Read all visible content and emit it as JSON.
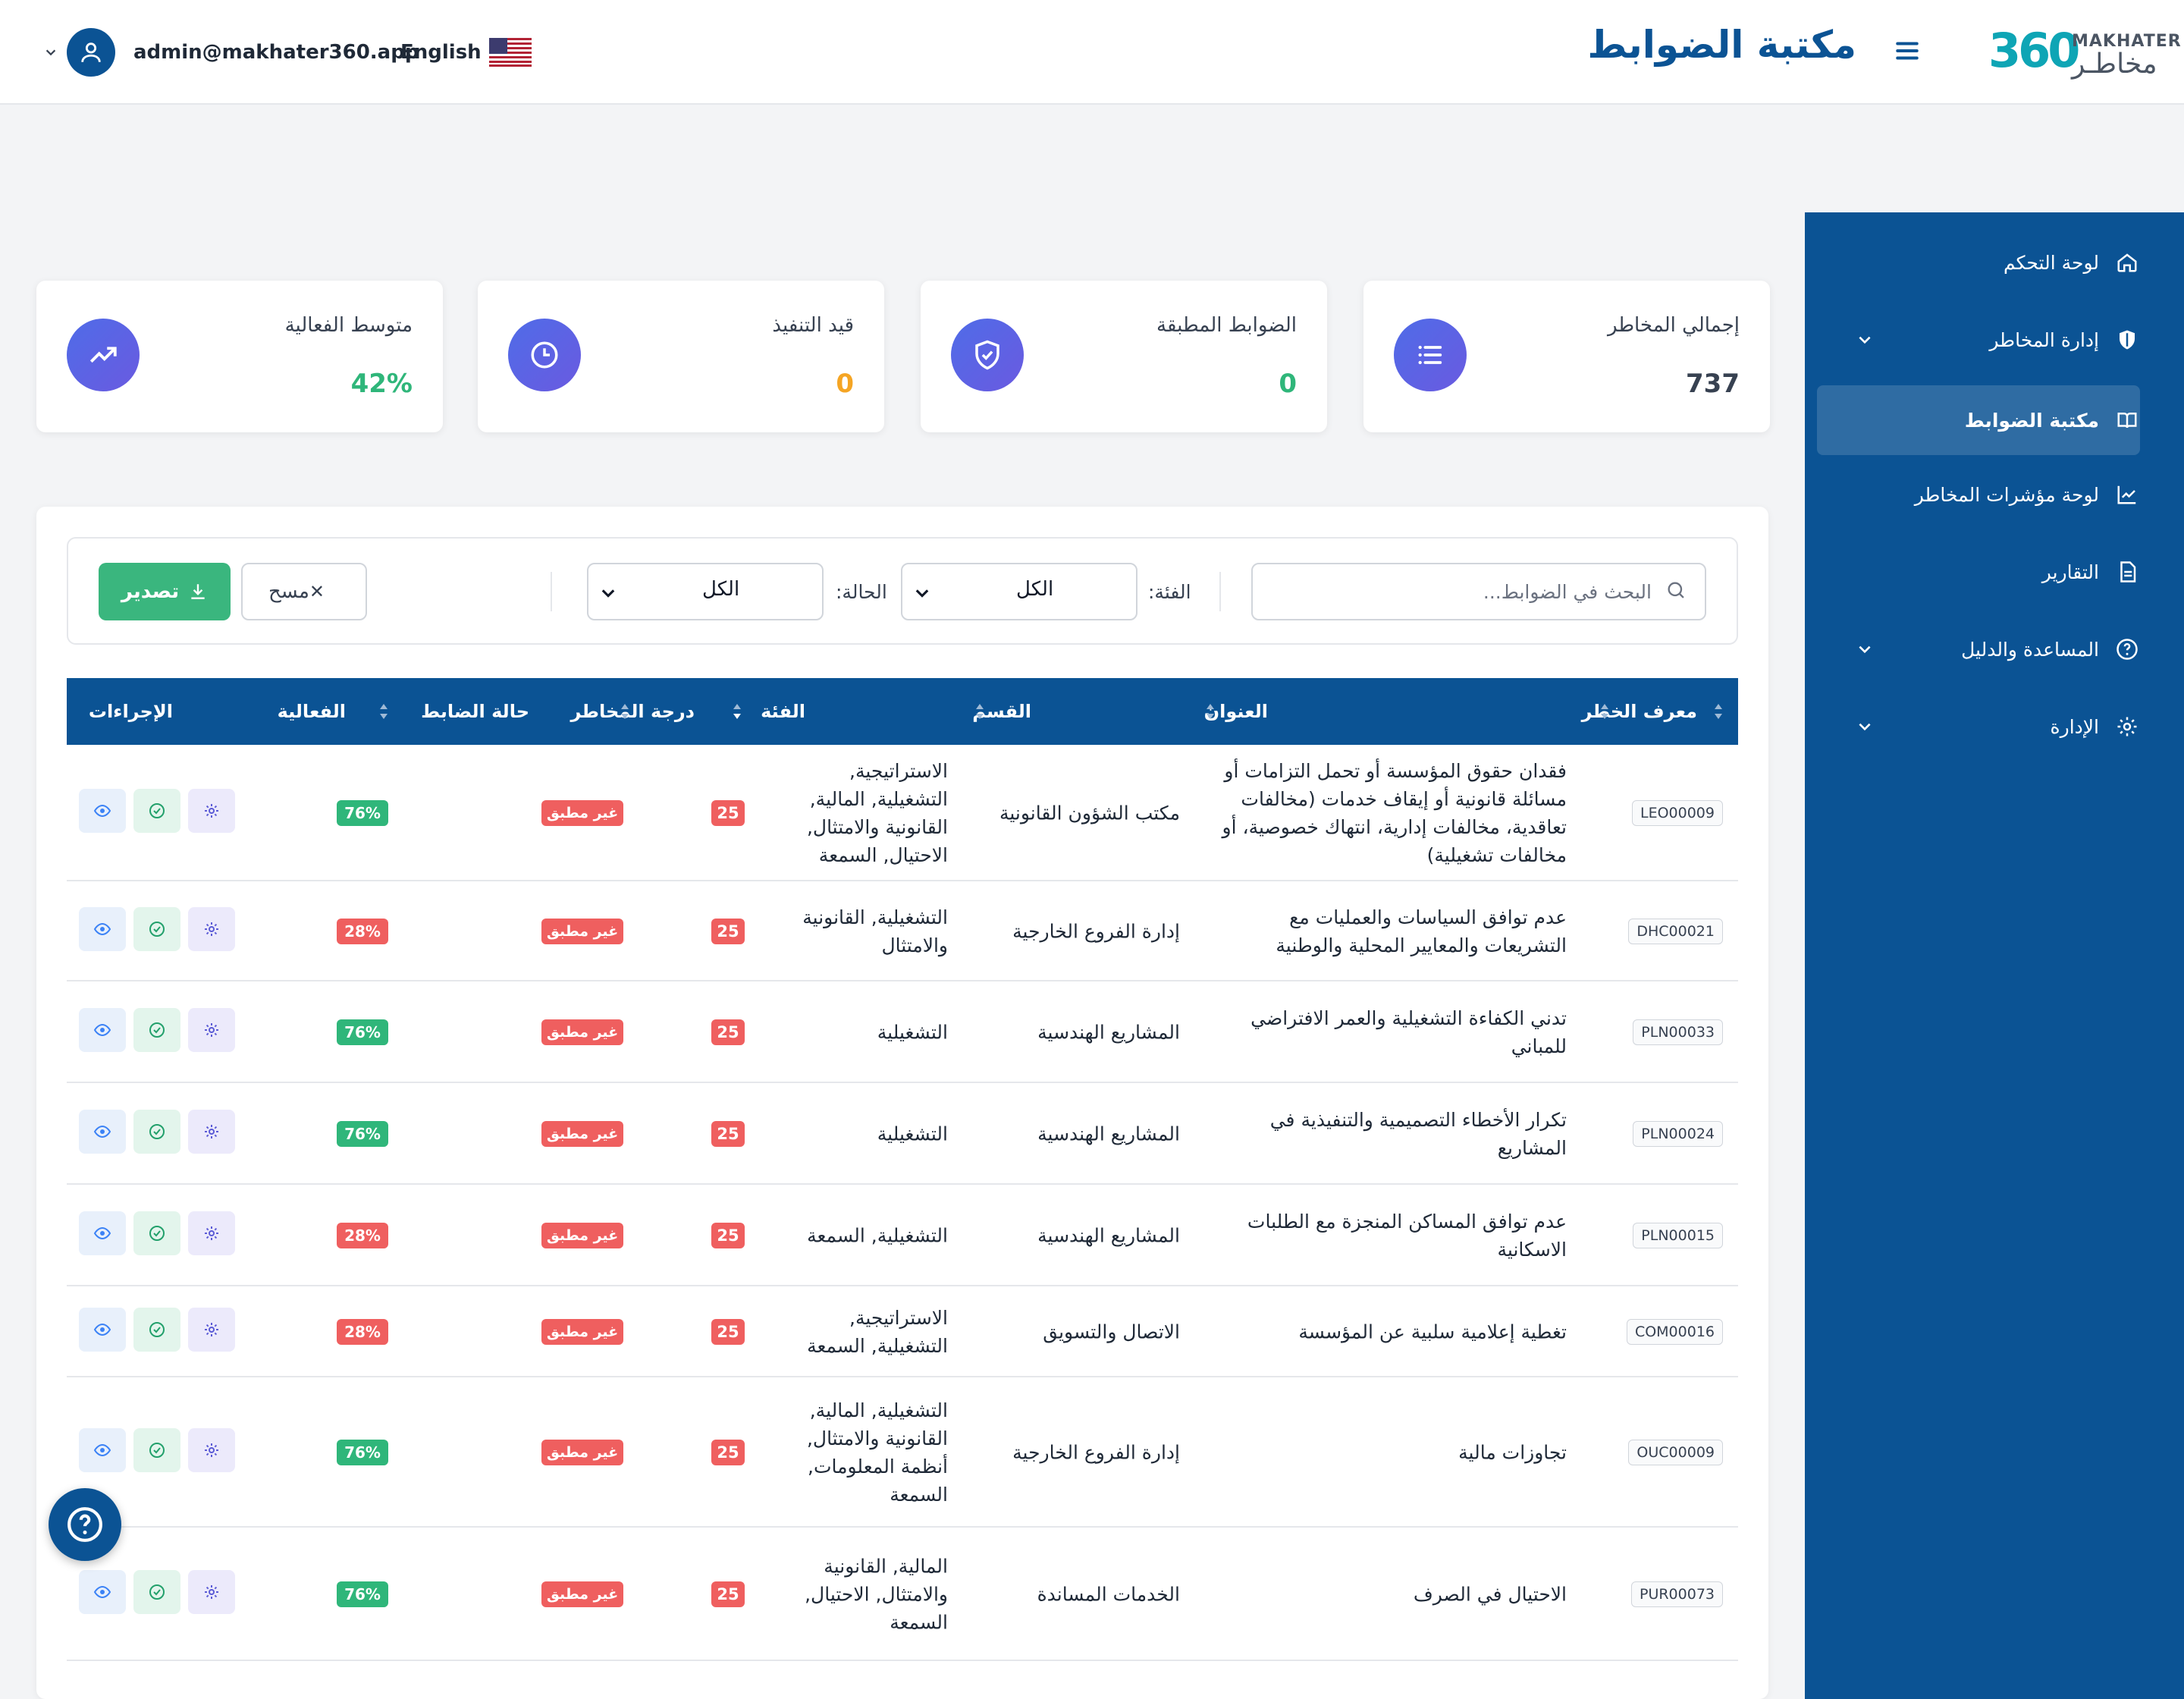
{
  "header": {
    "user_email": "admin@makhater360.app",
    "language": "English",
    "page_title": "مكتبة الضوابط",
    "logo_number": "360",
    "logo_en": "MAKHATER",
    "logo_ar": "مخاطـر"
  },
  "sidebar": {
    "items": [
      {
        "label": "لوحة التحكم",
        "icon": "home-icon",
        "has_chevron": false,
        "active": false
      },
      {
        "label": "إدارة المخاطر",
        "icon": "shield-icon",
        "has_chevron": true,
        "active": false
      },
      {
        "label": "مكتبة الضوابط",
        "icon": "book-icon",
        "has_chevron": false,
        "active": true
      },
      {
        "label": "لوحة مؤشرات المخاطر",
        "icon": "chart-line-icon",
        "has_chevron": false,
        "active": false
      },
      {
        "label": "التقارير",
        "icon": "document-icon",
        "has_chevron": false,
        "active": false
      },
      {
        "label": "المساعدة والدليل",
        "icon": "help-circle-icon",
        "has_chevron": true,
        "active": false
      },
      {
        "label": "الإدارة",
        "icon": "gear-icon",
        "has_chevron": true,
        "active": false
      }
    ]
  },
  "stats": [
    {
      "label": "إجمالي المخاطر",
      "value": "737",
      "color": "#374151",
      "icon": "list-icon"
    },
    {
      "label": "الضوابط المطبقة",
      "value": "0",
      "color": "#2fb67a",
      "icon": "shield-check-icon"
    },
    {
      "label": "قيد التنفيذ",
      "value": "0",
      "color": "#f5a524",
      "icon": "clock-icon"
    },
    {
      "label": "متوسط الفعالية",
      "value": "42%",
      "color": "#2fb67a",
      "icon": "trend-up-icon"
    }
  ],
  "filters": {
    "search_placeholder": "البحث في الضوابط...",
    "category_label": "الفئة:",
    "category_value": "الكل",
    "status_label": "الحالة:",
    "status_value": "الكل",
    "clear_label": "مسح",
    "export_label": "تصدير"
  },
  "table": {
    "headers": {
      "risk_id": "معرف الخطر",
      "title": "العنوان",
      "department": "القسم",
      "category": "الفئة",
      "risk_score": "درجة المخاطر",
      "control_status": "حالة الضابط",
      "effectiveness": "الفعالية",
      "actions": "الإجراءات"
    },
    "rows": [
      {
        "id": "LEO00009",
        "title": "فقدان حقوق المؤسسة أو تحمل التزامات أو مسائلة قانونية أو إيقاف خدمات (مخالفات تعاقدية، مخالفات إدارية، انتهاك خصوصية، أو مخالفات تشغيلية)",
        "department": "مكتب الشؤون القانونية",
        "category": "الاستراتيجية, التشغيلية, المالية, القانونية والامتثال, الاحتيال, السمعة",
        "score": "25",
        "status": "غير مطبق",
        "effectiveness": "76%",
        "eff_color": "#2fb67a"
      },
      {
        "id": "DHC00021",
        "title": "عدم توافق السياسات والعمليات مع التشريعات والمعايير المحلية والوطنية",
        "department": "إدارة الفروع الخارجية",
        "category": "التشغيلية, القانونية والامتثال",
        "score": "25",
        "status": "غير مطبق",
        "effectiveness": "28%",
        "eff_color": "#ef5f5f"
      },
      {
        "id": "PLN00033",
        "title": "تدني الكفاءة التشغيلية والعمر الافتراضي للمباني",
        "department": "المشاريع الهندسية",
        "category": "التشغيلية",
        "score": "25",
        "status": "غير مطبق",
        "effectiveness": "76%",
        "eff_color": "#2fb67a"
      },
      {
        "id": "PLN00024",
        "title": "تكرار الأخطاء التصميمية والتنفيذية في المشاريع",
        "department": "المشاريع الهندسية",
        "category": "التشغيلية",
        "score": "25",
        "status": "غير مطبق",
        "effectiveness": "76%",
        "eff_color": "#2fb67a"
      },
      {
        "id": "PLN00015",
        "title": "عدم توافق المساكن المنجزة مع الطلبات الاسكانية",
        "department": "المشاريع الهندسية",
        "category": "التشغيلية, السمعة",
        "score": "25",
        "status": "غير مطبق",
        "effectiveness": "28%",
        "eff_color": "#ef5f5f"
      },
      {
        "id": "COM00016",
        "title": "تغطية إعلامية سلبية عن المؤسسة",
        "department": "الاتصال والتسويق",
        "category": "الاستراتيجية, التشغيلية, السمعة",
        "score": "25",
        "status": "غير مطبق",
        "effectiveness": "28%",
        "eff_color": "#ef5f5f"
      },
      {
        "id": "OUC00009",
        "title": "تجاوزات مالية",
        "department": "إدارة الفروع الخارجية",
        "category": "التشغيلية, المالية, القانونية والامتثال, أنظمة المعلومات, السمعة",
        "score": "25",
        "status": "غير مطبق",
        "effectiveness": "76%",
        "eff_color": "#2fb67a"
      },
      {
        "id": "PUR00073",
        "title": "الاحتيال في الصرف",
        "department": "الخدمات المساندة",
        "category": "المالية, القانونية والامتثال, الاحتيال, السمعة",
        "score": "25",
        "status": "غير مطبق",
        "effectiveness": "76%",
        "eff_color": "#2fb67a"
      }
    ]
  }
}
